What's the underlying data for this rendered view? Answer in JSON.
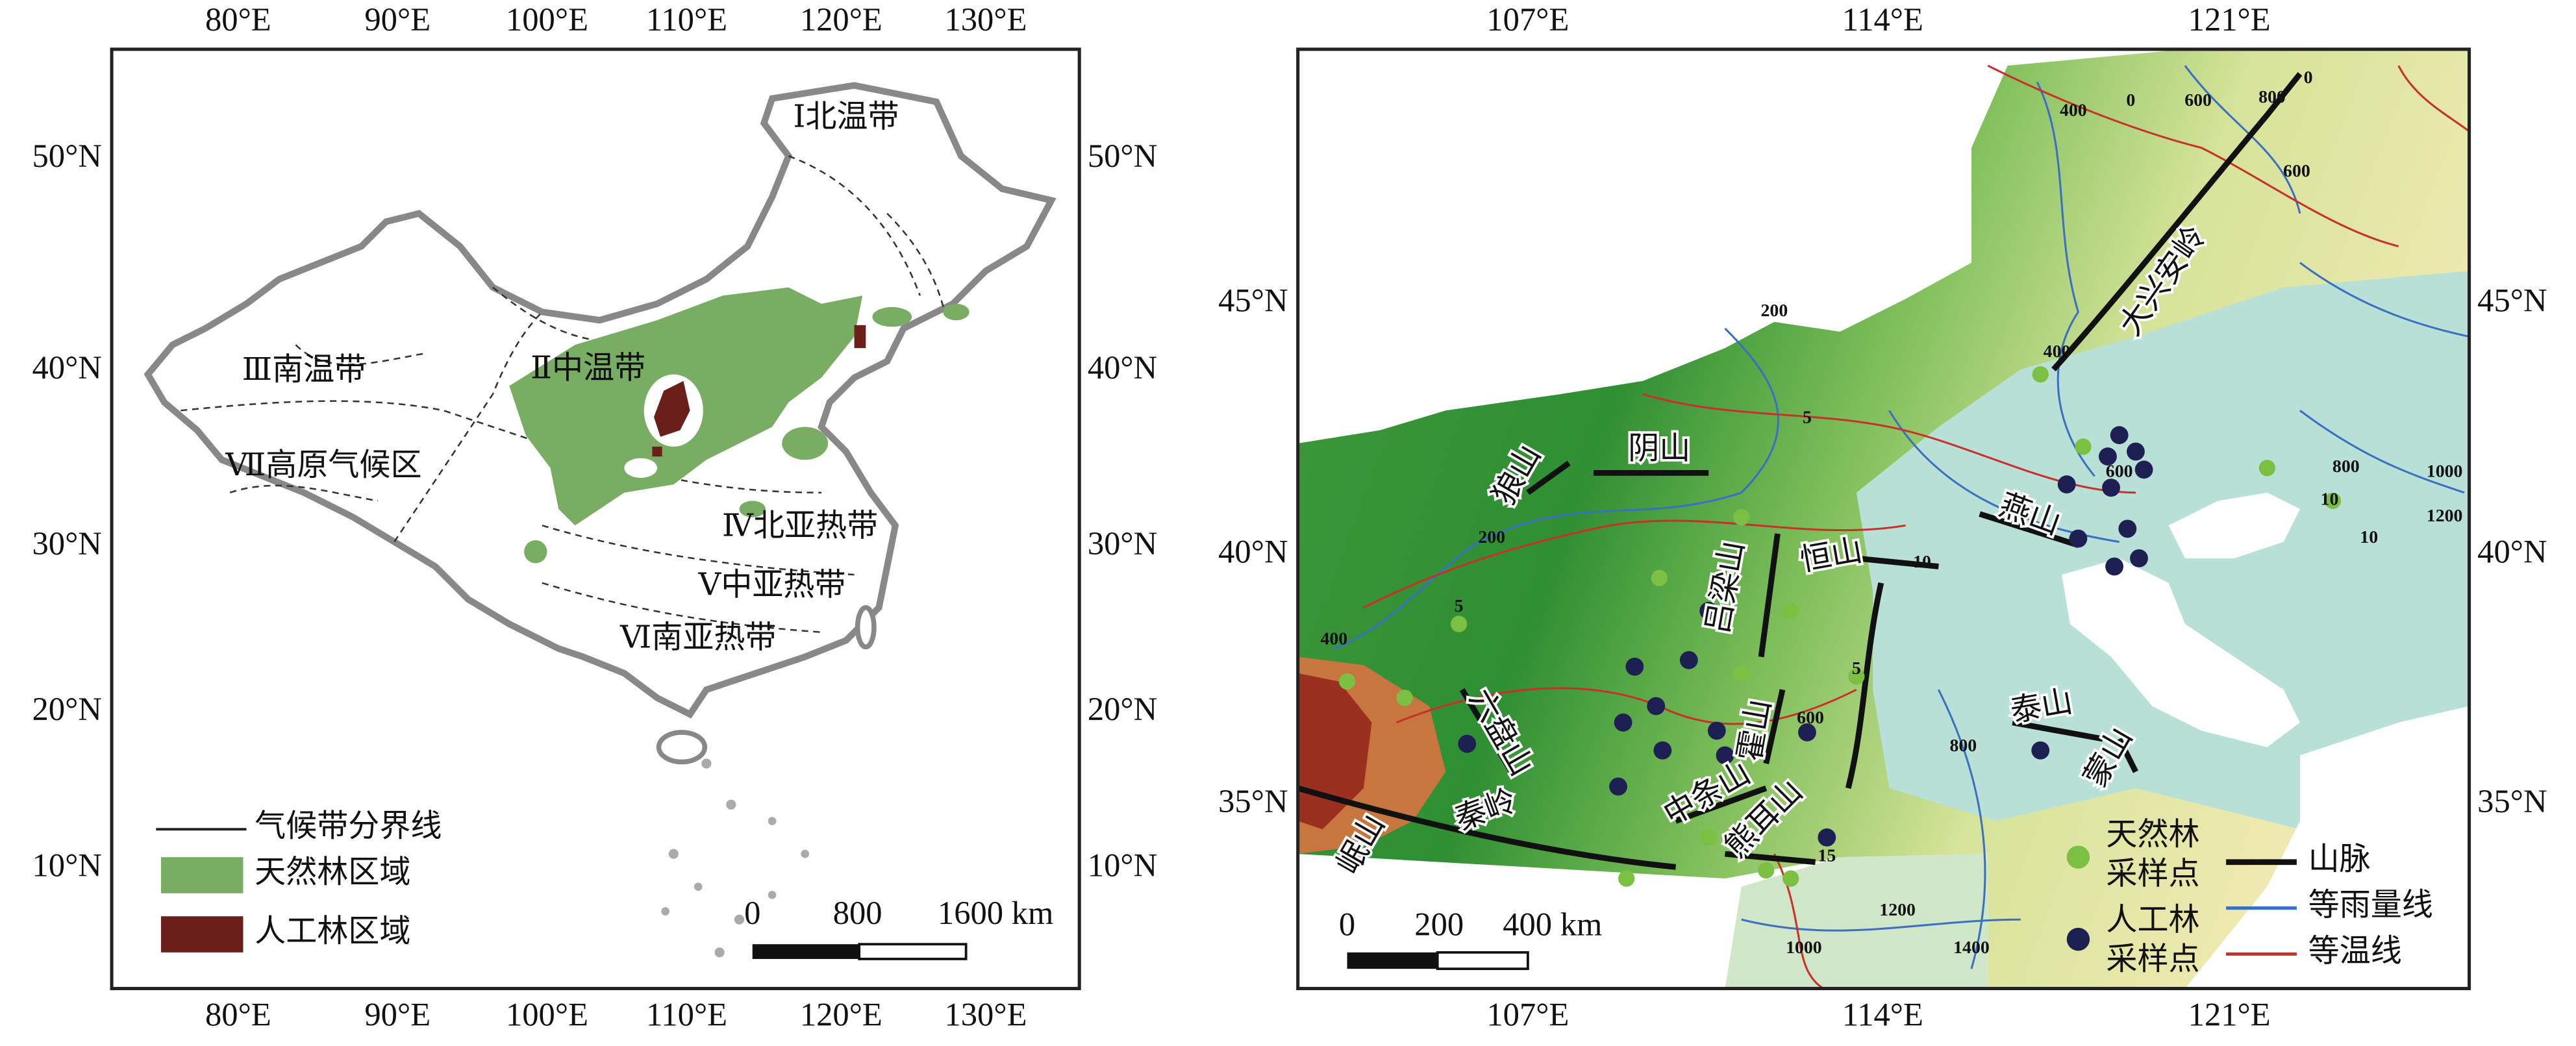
{
  "left_map": {
    "top_ticks": [
      "80°E",
      "90°E",
      "100°E",
      "110°E",
      "120°E",
      "130°E"
    ],
    "bottom_ticks": [
      "80°E",
      "90°E",
      "100°E",
      "110°E",
      "120°E",
      "130°E"
    ],
    "left_ticks": [
      "50°N",
      "40°N",
      "30°N",
      "20°N",
      "10°N"
    ],
    "right_ticks": [
      "50°N",
      "40°N",
      "30°N",
      "20°N",
      "10°N"
    ],
    "zones": [
      "Ⅰ北温带",
      "Ⅱ中温带",
      "Ⅲ南温带",
      "Ⅳ北亚热带",
      "Ⅴ中亚热带",
      "Ⅵ南亚热带",
      "Ⅶ高原气候区"
    ],
    "legend": [
      "气候带分界线",
      "天然林区域",
      "人工林区域"
    ],
    "scale_bar": [
      "0",
      "800",
      "1600 km"
    ]
  },
  "right_map": {
    "top_ticks": [
      "107°E",
      "114°E",
      "121°E"
    ],
    "bottom_ticks": [
      "107°E",
      "114°E",
      "121°E"
    ],
    "left_ticks": [
      "45°N",
      "40°N",
      "35°N"
    ],
    "right_ticks": [
      "45°N",
      "40°N",
      "35°N"
    ],
    "mountains": [
      "大兴安岭",
      "狼山",
      "阴山",
      "燕山",
      "吕梁山",
      "恒山",
      "霍山",
      "六盘山",
      "秦岭",
      "岷山",
      "中条山",
      "熊耳山",
      "泰山",
      "蒙山"
    ],
    "contour_labels": [
      "400",
      "0",
      "600",
      "800",
      "0",
      "600",
      "200",
      "400",
      "5",
      "600",
      "10",
      "800",
      "1000",
      "1200",
      "10",
      "10",
      "200",
      "5",
      "400",
      "600",
      "5",
      "800",
      "1200",
      "1000",
      "1400",
      "15"
    ],
    "legend": {
      "natural": [
        "天然林",
        "采样点"
      ],
      "planted": [
        "人工林",
        "采样点"
      ],
      "lines": [
        "山脉",
        "等雨量线",
        "等温线"
      ]
    },
    "scale_bar": [
      "0",
      "200",
      "400 km"
    ]
  }
}
